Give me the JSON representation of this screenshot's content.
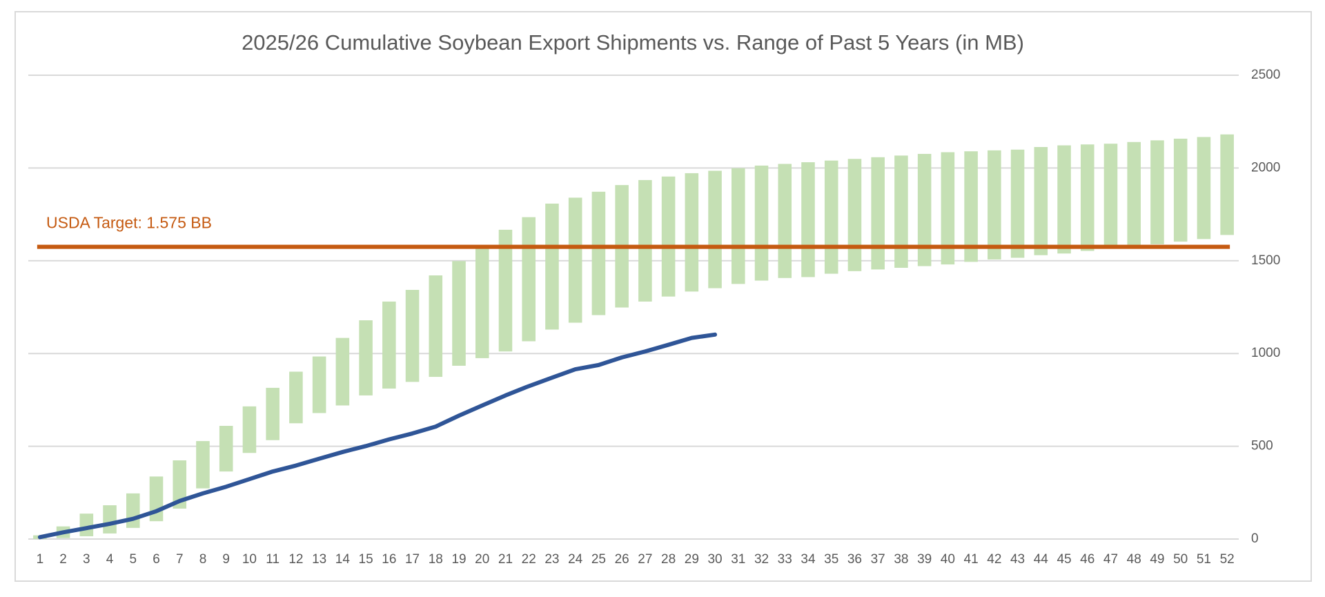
{
  "chart_data": {
    "type": "range_bar",
    "title": "2025/26 Cumulative Soybean Export Shipments vs. Range of Past 5 Years (in MB)",
    "categories": [
      "1",
      "2",
      "3",
      "4",
      "5",
      "6",
      "7",
      "8",
      "9",
      "10",
      "11",
      "12",
      "13",
      "14",
      "15",
      "16",
      "17",
      "18",
      "19",
      "20",
      "21",
      "22",
      "23",
      "24",
      "25",
      "26",
      "27",
      "28",
      "29",
      "30",
      "31",
      "32",
      "33",
      "34",
      "35",
      "36",
      "37",
      "38",
      "39",
      "40",
      "41",
      "42",
      "43",
      "44",
      "45",
      "46",
      "47",
      "48",
      "49",
      "50",
      "51",
      "52"
    ],
    "range": {
      "color": "#c5e0b4",
      "low": [
        0,
        5,
        15,
        30,
        60,
        96,
        164,
        273,
        364,
        464,
        533,
        624,
        679,
        720,
        774,
        811,
        847,
        874,
        934,
        975,
        1011,
        1066,
        1129,
        1166,
        1207,
        1248,
        1280,
        1307,
        1334,
        1352,
        1375,
        1393,
        1407,
        1412,
        1430,
        1444,
        1453,
        1462,
        1471,
        1480,
        1494,
        1507,
        1516,
        1530,
        1539,
        1553,
        1566,
        1576,
        1589,
        1603,
        1617,
        1639
      ],
      "high": [
        20,
        68,
        137,
        182,
        246,
        337,
        424,
        528,
        610,
        715,
        815,
        902,
        984,
        1084,
        1179,
        1280,
        1343,
        1421,
        1498,
        1576,
        1667,
        1735,
        1808,
        1840,
        1872,
        1908,
        1935,
        1954,
        1972,
        1985,
        1999,
        2013,
        2022,
        2031,
        2040,
        2049,
        2058,
        2067,
        2076,
        2085,
        2090,
        2095,
        2099,
        2113,
        2122,
        2127,
        2131,
        2140,
        2149,
        2158,
        2167,
        2181
      ]
    },
    "line": {
      "color": "#2f5597",
      "values": [
        10,
        36,
        59,
        82,
        109,
        150,
        205,
        246,
        282,
        323,
        364,
        396,
        433,
        469,
        501,
        537,
        569,
        606,
        665,
        720,
        774,
        824,
        870,
        915,
        938,
        979,
        1011,
        1047,
        1084,
        1102,
        null,
        null,
        null,
        null,
        null,
        null,
        null,
        null,
        null,
        null,
        null,
        null,
        null,
        null,
        null,
        null,
        null,
        null,
        null,
        null,
        null,
        null
      ]
    },
    "target": {
      "value": 1575,
      "label": "USDA Target: 1.575 BB",
      "color": "#c55a11"
    },
    "ylim": [
      0,
      2500
    ],
    "yticks": [
      0,
      500,
      1000,
      1500,
      2000,
      2500
    ],
    "grid": true,
    "y_axis_side": "right"
  }
}
